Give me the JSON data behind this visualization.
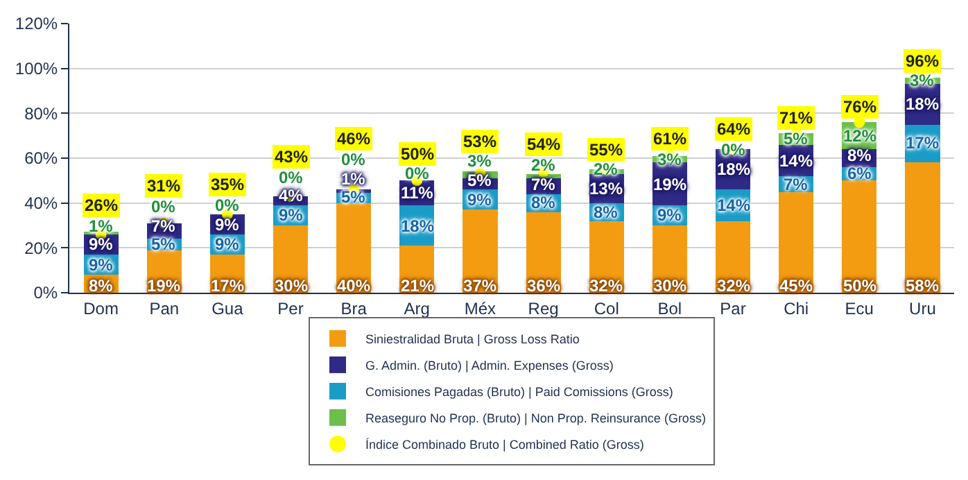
{
  "chart_data": {
    "type": "bar",
    "stacked": true,
    "categories": [
      "Dom",
      "Pan",
      "Gua",
      "Per",
      "Bra",
      "Arg",
      "Méx",
      "Reg",
      "Col",
      "Bol",
      "Par",
      "Chi",
      "Ecu",
      "Uru"
    ],
    "series": [
      {
        "name": "Siniestralidad Bruta | Gross Loss Ratio",
        "color": "#f39c12",
        "values": [
          8,
          19,
          17,
          30,
          40,
          21,
          37,
          36,
          32,
          30,
          32,
          45,
          50,
          58
        ],
        "value_labels": [
          "8%",
          "19%",
          "17%",
          "30%",
          "40%",
          "21%",
          "37%",
          "36%",
          "32%",
          "30%",
          "32%",
          "45%",
          "50%",
          "58%"
        ]
      },
      {
        "name": "Comisiones Pagadas (Bruto) | Paid Comissions (Gross)",
        "color": "#1a9cc7",
        "values": [
          9,
          5,
          9,
          9,
          5,
          18,
          9,
          8,
          8,
          9,
          14,
          7,
          6,
          17
        ],
        "value_labels": [
          "9%",
          "5%",
          "9%",
          "9%",
          "5%",
          "18%",
          "9%",
          "8%",
          "8%",
          "9%",
          "14%",
          "7%",
          "6%",
          "17%"
        ]
      },
      {
        "name": "G. Admin. (Bruto) | Admin. Expenses (Gross)",
        "color": "#2f2a85",
        "values": [
          9,
          7,
          9,
          4,
          1,
          11,
          5,
          7,
          13,
          19,
          18,
          14,
          8,
          18
        ],
        "value_labels": [
          "9%",
          "7%",
          "9%",
          "4%",
          "1%",
          "11%",
          "5%",
          "7%",
          "13%",
          "19%",
          "18%",
          "14%",
          "8%",
          "18%"
        ]
      },
      {
        "name": "Reaseguro No Prop. (Bruto) | Non Prop. Reinsurance (Gross)",
        "color": "#6cbf4a",
        "values": [
          1,
          0,
          0,
          0,
          0,
          0,
          3,
          2,
          2,
          3,
          0,
          5,
          12,
          3
        ],
        "value_labels": [
          "1%",
          "0%",
          "0%",
          "0%",
          "0%",
          "0%",
          "3%",
          "2%",
          "2%",
          "3%",
          "0%",
          "5%",
          "12%",
          "3%"
        ]
      },
      {
        "name": "Índice Combinado Bruto | Combined Ratio (Gross)",
        "type": "scatter",
        "color": "#ffff00",
        "values": [
          26,
          31,
          35,
          43,
          46,
          50,
          53,
          54,
          55,
          61,
          64,
          71,
          76,
          96
        ],
        "value_labels": [
          "26%",
          "31%",
          "35%",
          "43%",
          "46%",
          "50%",
          "53%",
          "54%",
          "55%",
          "61%",
          "64%",
          "71%",
          "76%",
          "96%"
        ]
      }
    ],
    "ylim": [
      0,
      120
    ],
    "yticks": [
      {
        "value": 0,
        "label": "0%"
      },
      {
        "value": 20,
        "label": "20%"
      },
      {
        "value": 40,
        "label": "40%"
      },
      {
        "value": 60,
        "label": "60%"
      },
      {
        "value": 80,
        "label": "80%"
      },
      {
        "value": 100,
        "label": "100%"
      },
      {
        "value": 120,
        "label": "120%"
      }
    ],
    "grid": "y",
    "legend": "bottom",
    "marker": "circle"
  }
}
